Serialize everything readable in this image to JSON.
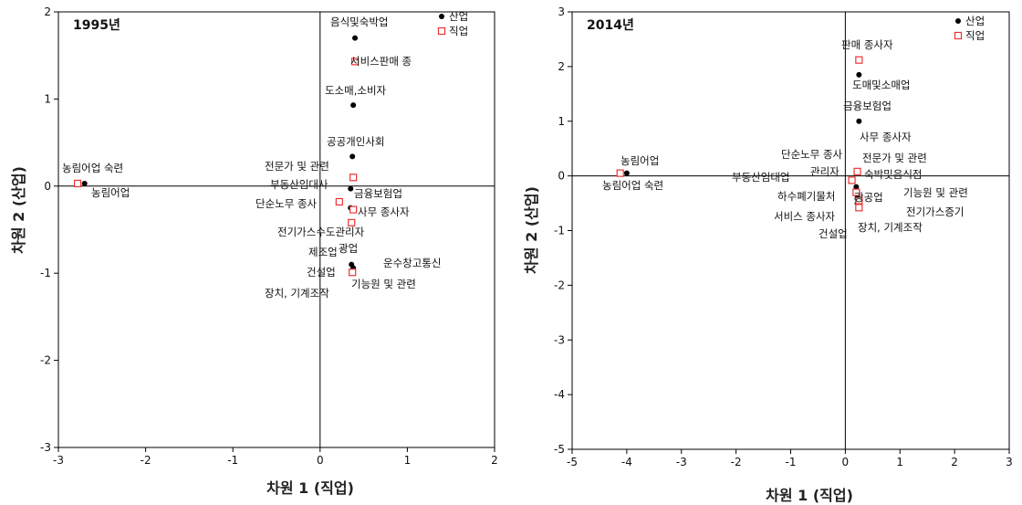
{
  "chart_data": [
    {
      "type": "scatter",
      "title": "1995년",
      "xlabel": "차원 1  (직업)",
      "ylabel": "차원 2  (산업)",
      "xlim": [
        -3,
        2
      ],
      "ylim": [
        -3,
        2
      ],
      "xticks": [
        "-3",
        "-2",
        "-1",
        "0",
        "1",
        "2"
      ],
      "yticks": [
        "2",
        "1",
        "0",
        "-1",
        "-2",
        "-3"
      ],
      "legend": [
        "산업",
        "직업"
      ],
      "legend_position": "top-right",
      "series": [
        {
          "name": "산업",
          "points": [
            {
              "x": -2.7,
              "y": 0.03
            },
            {
              "x": 0.4,
              "y": 1.7
            },
            {
              "x": 0.38,
              "y": 0.93
            },
            {
              "x": 0.37,
              "y": 0.34
            },
            {
              "x": 0.35,
              "y": -0.03
            },
            {
              "x": 0.35,
              "y": -0.25
            },
            {
              "x": 0.37,
              "y": -0.42
            },
            {
              "x": 0.36,
              "y": -0.9
            },
            {
              "x": 0.38,
              "y": -0.94
            },
            {
              "x": 0.37,
              "y": -0.97
            }
          ]
        },
        {
          "name": "직업",
          "points": [
            {
              "x": -2.78,
              "y": 0.03
            },
            {
              "x": 0.4,
              "y": 1.43
            },
            {
              "x": 0.38,
              "y": 0.1
            },
            {
              "x": 0.22,
              "y": -0.18
            },
            {
              "x": 0.38,
              "y": -0.27
            },
            {
              "x": 0.36,
              "y": -0.42
            },
            {
              "x": 0.37,
              "y": -0.99
            }
          ]
        }
      ],
      "annotations": [
        "농림어업 숙련",
        "농림어업",
        "음식및숙박업",
        "서비스판매 종",
        "도소매,소비자",
        "공공개인사회",
        "전문가 및 관련",
        "부동산임대사",
        "금융보험업",
        "단순노무 종사",
        "사무 종사자",
        "전기가스수도관리자",
        "제조업",
        "광업",
        "운수창고통신",
        "건설업",
        "기능원 및 관련",
        "장치, 기계조작"
      ]
    },
    {
      "type": "scatter",
      "title": "2014년",
      "xlabel": "차원 1  (직업)",
      "ylabel": "차원 2  (산업)",
      "xlim": [
        -5,
        3
      ],
      "ylim": [
        -5,
        3
      ],
      "xticks": [
        "-5",
        "-4",
        "-3",
        "-2",
        "-1",
        "0",
        "1",
        "2",
        "3"
      ],
      "yticks": [
        "3",
        "2",
        "1",
        "0",
        "-1",
        "-2",
        "-3",
        "-4",
        "-5"
      ],
      "legend": [
        "산업",
        "직업"
      ],
      "legend_position": "top-right",
      "series": [
        {
          "name": "산업",
          "points": [
            {
              "x": -4.0,
              "y": 0.05
            },
            {
              "x": 0.25,
              "y": 1.85
            },
            {
              "x": 0.25,
              "y": 1.0
            },
            {
              "x": 0.2,
              "y": -0.2
            },
            {
              "x": 0.22,
              "y": -0.28
            },
            {
              "x": 0.22,
              "y": -0.35
            },
            {
              "x": 0.22,
              "y": -0.42
            },
            {
              "x": 0.22,
              "y": -0.5
            }
          ]
        },
        {
          "name": "직업",
          "points": [
            {
              "x": -4.12,
              "y": 0.05
            },
            {
              "x": 0.25,
              "y": 2.12
            },
            {
              "x": 0.22,
              "y": 0.08
            },
            {
              "x": 0.12,
              "y": -0.08
            },
            {
              "x": 0.2,
              "y": -0.3
            },
            {
              "x": 0.25,
              "y": -0.45
            },
            {
              "x": 0.25,
              "y": -0.58
            }
          ]
        }
      ],
      "annotations": [
        "판매 종사자",
        "도매및소매업",
        "금융보험업",
        "사무 종사자",
        "농림어업",
        "농림어업 숙련",
        "단순노무 종사",
        "전문가 및 관련",
        "부동산임대업",
        "관리자",
        "숙박및음식점",
        "하수폐기물처",
        "광공업",
        "기능원 및 관련",
        "전기가스증기",
        "서비스 종사자",
        "장치, 기계조작",
        "건설업"
      ]
    }
  ]
}
